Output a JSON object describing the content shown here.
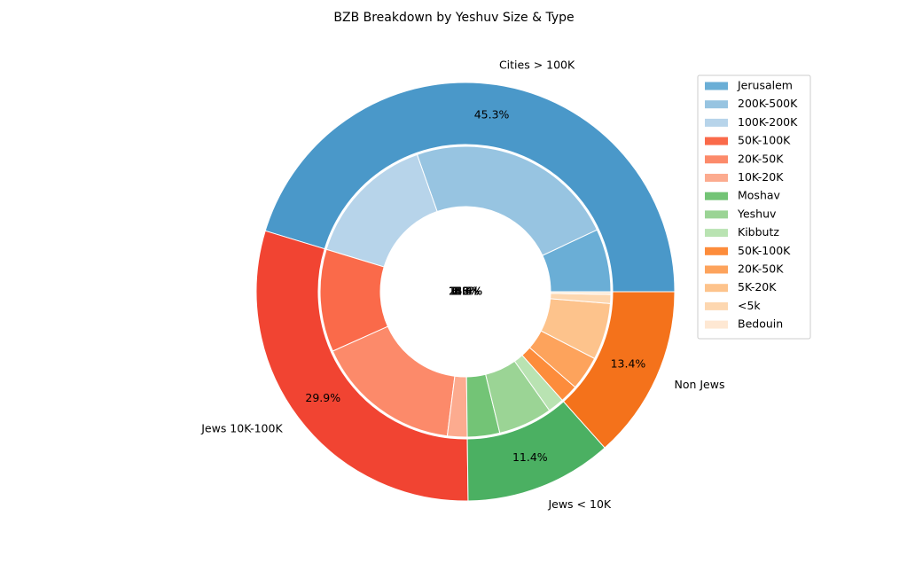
{
  "chart_data": {
    "type": "pie",
    "title": "BZB Breakdown by Yeshuv Size & Type",
    "outer": {
      "categories": [
        "Cities > 100K",
        "Jews 10K-100K",
        "Jews < 10K",
        "Non Jews"
      ],
      "values": [
        45.3,
        29.9,
        11.4,
        13.4
      ],
      "labels": [
        "45.3%",
        "29.9%",
        "11.4%",
        "13.4%"
      ],
      "colors": [
        "#4a98c9",
        "#f14432",
        "#4bb062",
        "#f4721b"
      ]
    },
    "inner": {
      "categories": [
        "Jerusalem",
        "200K-500K",
        "100K-200K",
        "50K-100K",
        "20K-50K",
        "10K-20K",
        "Moshav",
        "Yeshuv",
        "Kibbutz",
        "50K-100K",
        "20K-50K",
        "5K-20K",
        "<5k",
        "Bedouin"
      ],
      "values": [
        7.0,
        23.4,
        14.9,
        11.4,
        16.3,
        2.2,
        3.6,
        6.0,
        1.8,
        2.0,
        3.8,
        6.3,
        1.0,
        0.3
      ],
      "labels": [
        "7.0%",
        "23.4%",
        "14.9%",
        "11.4%",
        "16.3%",
        "2.2%",
        "3.6%",
        "6.0%",
        "1.8%",
        "2.0%",
        "3.8%",
        "6.3%",
        "1.0%",
        "0.3%"
      ],
      "colors": [
        "#6aaed6",
        "#97c4e1",
        "#b7d4ea",
        "#fa6a4a",
        "#fc8a6a",
        "#fcab8f",
        "#73c476",
        "#9bd495",
        "#b9e3b2",
        "#fd8c3b",
        "#fda35c",
        "#fdc38c",
        "#fdd7b0",
        "#fee8d3"
      ]
    },
    "legend": {
      "placement": "top-right",
      "entries": [
        "Jerusalem",
        "200K-500K",
        "100K-200K",
        "50K-100K",
        "20K-50K",
        "10K-20K",
        "Moshav",
        "Yeshuv",
        "Kibbutz",
        "50K-100K",
        "20K-50K",
        "5K-20K",
        "<5k",
        "Bedouin"
      ]
    }
  }
}
